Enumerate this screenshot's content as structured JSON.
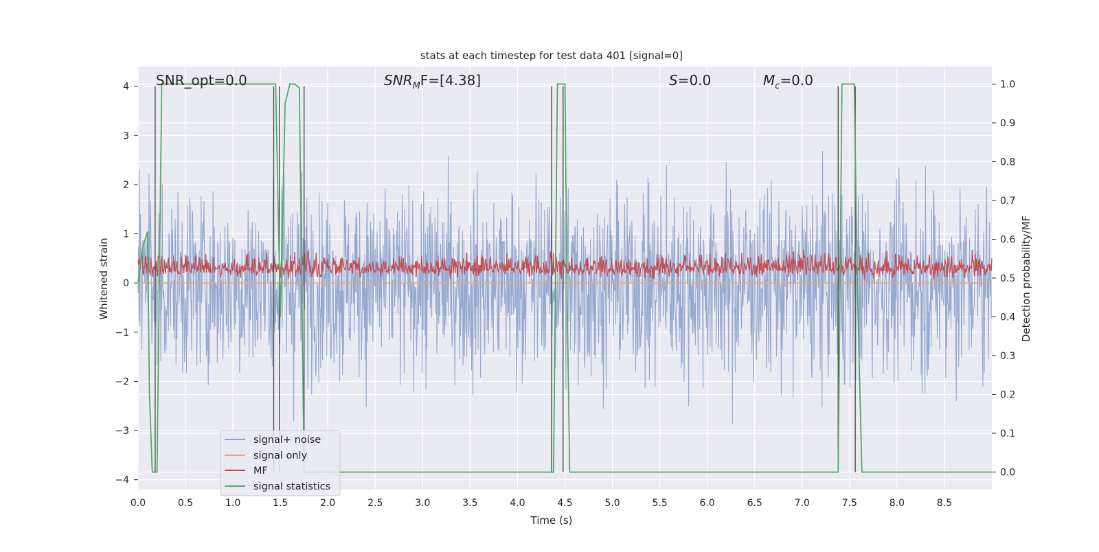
{
  "chart_data": {
    "type": "line",
    "title": "stats at each timestep for test data 401 [signal=0]",
    "xlabel": "Time (s)",
    "ylabel_left": "Whitened strain",
    "ylabel_right": "Detection probability/MF",
    "xlim": [
      0.0,
      9.0
    ],
    "ylim_left": [
      -4.2,
      4.4
    ],
    "ylim_right": [
      -0.045,
      1.045
    ],
    "x_ticks": [
      "0.0",
      "0.5",
      "1.0",
      "1.5",
      "2.0",
      "2.5",
      "3.0",
      "3.5",
      "4.0",
      "4.5",
      "5.0",
      "5.5",
      "6.0",
      "6.5",
      "7.0",
      "7.5",
      "8.0",
      "8.5"
    ],
    "y_ticks_left": [
      "−4",
      "−3",
      "−2",
      "−1",
      "0",
      "1",
      "2",
      "3",
      "4"
    ],
    "y_ticks_right": [
      "0.0",
      "0.1",
      "0.2",
      "0.3",
      "0.4",
      "0.5",
      "0.6",
      "0.7",
      "0.8",
      "0.9",
      "1.0"
    ],
    "grid": true,
    "legend_position": "lower-left",
    "annotations": [
      {
        "plain": "SNR_opt=0.0"
      },
      {
        "base": "SNR",
        "sub": "M",
        "tail": "F=[4.38]"
      },
      {
        "base": "S",
        "sub": "",
        "tail": "=0.0"
      },
      {
        "base": "M",
        "sub": "c",
        "tail": "=0.0"
      }
    ],
    "series": [
      {
        "name": "signal+ noise",
        "color": "#8da2cb",
        "axis": "left",
        "pattern": "noise",
        "amplitude_range": [
          -3.7,
          3.4
        ]
      },
      {
        "name": "signal only",
        "color": "#e8a585",
        "axis": "left",
        "pattern": "flat",
        "value": 0.0
      },
      {
        "name": "MF",
        "color": "#c44e52",
        "axis": "left",
        "pattern": "noise",
        "amplitude_range": [
          0.0,
          0.9
        ]
      },
      {
        "name": "signal statistics",
        "color": "#55a868",
        "axis": "right",
        "x": [
          0.0,
          0.05,
          0.1,
          0.12,
          0.15,
          0.2,
          0.25,
          1.0,
          1.45,
          1.5,
          1.55,
          1.6,
          1.65,
          1.7,
          1.75,
          1.82,
          1.88,
          2.0,
          4.38,
          4.42,
          4.5,
          4.52,
          4.55,
          6.0,
          7.38,
          7.42,
          7.55,
          7.58,
          7.63,
          7.7,
          8.0,
          9.0
        ],
        "values": [
          0.49,
          0.58,
          0.62,
          0.2,
          0.0,
          0.0,
          1.0,
          1.0,
          1.0,
          0.4,
          0.95,
          1.0,
          1.0,
          0.99,
          0.0,
          0.0,
          0.0,
          0.0,
          0.0,
          1.0,
          1.0,
          0.5,
          0.0,
          0.0,
          0.0,
          1.0,
          1.0,
          0.5,
          0.0,
          0.0,
          0.0,
          0.0
        ]
      }
    ],
    "vertical_markers_x": [
      0.18,
      1.43,
      1.49,
      1.75,
      4.36,
      4.48,
      7.38,
      7.56
    ]
  },
  "colors": {
    "plot_background": "#eaeaf2",
    "grid": "#ffffff",
    "marker_line": "#4a4a4a"
  }
}
